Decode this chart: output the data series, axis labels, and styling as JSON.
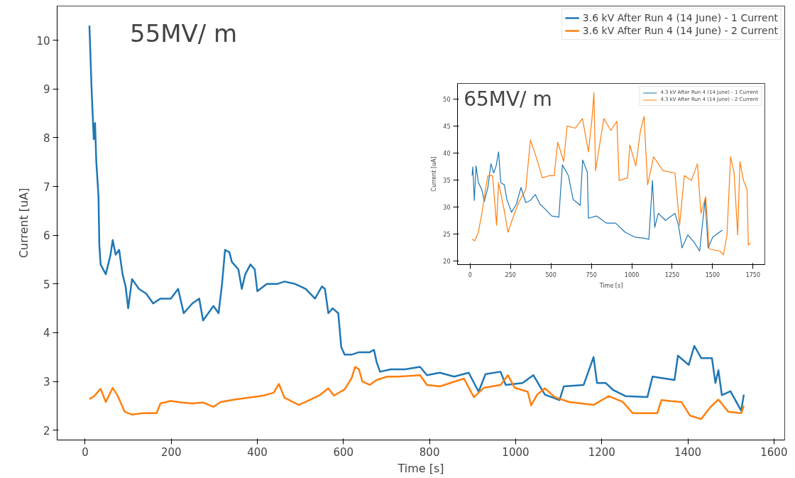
{
  "chart_data": [
    {
      "type": "line",
      "xlabel": "Time [s]",
      "ylabel": "Current [uA]",
      "xlim": [
        -65,
        1625
      ],
      "ylim": [
        1.8,
        10.7
      ],
      "xticks": [
        0,
        200,
        400,
        600,
        800,
        1000,
        1200,
        1400,
        1600
      ],
      "yticks": [
        2,
        3,
        4,
        5,
        6,
        7,
        8,
        9,
        10
      ],
      "legend": "top right",
      "annotations": [
        "55MV/ m"
      ],
      "series": [
        {
          "name": "3.6 kV After Run 4 (14 June) - 1 Current",
          "color": "#1f77b4",
          "x": [
            10,
            15,
            20,
            23,
            26,
            31,
            33,
            36,
            48,
            59,
            64,
            71,
            79,
            87,
            94,
            100,
            109,
            125,
            142,
            158,
            175,
            199,
            216,
            229,
            249,
            265,
            274,
            298,
            310,
            318,
            325,
            335,
            341,
            356,
            364,
            372,
            384,
            394,
            400,
            422,
            446,
            463,
            488,
            512,
            534,
            550,
            557,
            565,
            575,
            588,
            595,
            603,
            619,
            636,
            661,
            671,
            677,
            685,
            710,
            743,
            778,
            794,
            824,
            857,
            891,
            914,
            930,
            965,
            977,
            1016,
            1041,
            1068,
            1102,
            1112,
            1158,
            1181,
            1189,
            1209,
            1226,
            1255,
            1306,
            1318,
            1369,
            1377,
            1402,
            1415,
            1431,
            1456,
            1464,
            1471,
            1479,
            1499,
            1524,
            1530
          ],
          "values": [
            10.3,
            9.0,
            7.97,
            8.3,
            7.5,
            6.8,
            5.8,
            5.4,
            5.2,
            5.6,
            5.9,
            5.6,
            5.7,
            5.2,
            4.95,
            4.5,
            5.1,
            4.9,
            4.8,
            4.6,
            4.7,
            4.7,
            4.9,
            4.4,
            4.6,
            4.7,
            4.25,
            4.55,
            4.4,
            5.0,
            5.7,
            5.65,
            5.45,
            5.3,
            4.9,
            5.2,
            5.4,
            5.3,
            4.85,
            5.0,
            5.0,
            5.05,
            5.0,
            4.9,
            4.7,
            4.95,
            4.9,
            4.4,
            4.5,
            4.4,
            3.7,
            3.55,
            3.55,
            3.6,
            3.6,
            3.65,
            3.4,
            3.2,
            3.25,
            3.25,
            3.3,
            3.13,
            3.18,
            3.1,
            3.18,
            2.79,
            3.15,
            3.2,
            2.93,
            2.97,
            3.13,
            2.73,
            2.62,
            2.9,
            2.93,
            3.5,
            2.97,
            2.97,
            2.83,
            2.7,
            2.68,
            3.1,
            3.03,
            3.53,
            3.34,
            3.73,
            3.48,
            3.48,
            2.97,
            3.23,
            2.72,
            2.8,
            2.4,
            2.73
          ]
        },
        {
          "name": "3.6 kV After Run 4 (14 June) - 2 Current",
          "color": "#ff7f0e",
          "x": [
            10,
            21,
            36,
            48,
            64,
            76,
            92,
            109,
            133,
            166,
            175,
            199,
            224,
            249,
            274,
            298,
            315,
            348,
            381,
            414,
            438,
            450,
            463,
            496,
            512,
            545,
            565,
            578,
            603,
            619,
            627,
            636,
            644,
            661,
            677,
            702,
            727,
            778,
            794,
            824,
            880,
            903,
            926,
            965,
            982,
            998,
            1028,
            1036,
            1050,
            1068,
            1091,
            1124,
            1181,
            1216,
            1249,
            1272,
            1329,
            1339,
            1357,
            1385,
            1405,
            1431,
            1453,
            1471,
            1494,
            1524,
            1530
          ],
          "values": [
            2.64,
            2.7,
            2.85,
            2.58,
            2.87,
            2.7,
            2.38,
            2.32,
            2.35,
            2.35,
            2.55,
            2.6,
            2.57,
            2.55,
            2.57,
            2.48,
            2.58,
            2.63,
            2.67,
            2.71,
            2.77,
            2.95,
            2.67,
            2.52,
            2.58,
            2.72,
            2.86,
            2.71,
            2.84,
            3.07,
            3.3,
            3.25,
            3.0,
            2.93,
            3.03,
            3.1,
            3.1,
            3.13,
            2.93,
            2.9,
            3.06,
            2.68,
            2.87,
            2.93,
            3.13,
            2.87,
            2.79,
            2.51,
            2.73,
            2.86,
            2.68,
            2.58,
            2.52,
            2.7,
            2.58,
            2.35,
            2.35,
            2.62,
            2.6,
            2.58,
            2.3,
            2.23,
            2.48,
            2.63,
            2.38,
            2.35,
            2.5
          ]
        }
      ]
    },
    {
      "type": "line",
      "xlabel": "Time [s]",
      "ylabel": "Current [uA]",
      "xlim": [
        -78,
        1823
      ],
      "ylim": [
        19.3,
        52.9
      ],
      "xticks": [
        0,
        250,
        500,
        750,
        1000,
        1250,
        1500,
        1750
      ],
      "yticks": [
        20,
        25,
        30,
        35,
        40,
        45,
        50
      ],
      "legend": "top right",
      "annotations": [
        "65MV/ m"
      ],
      "series": [
        {
          "name": "4.3 kV After Run 4 (14 June) - 1 Current",
          "color": "#1f77b4",
          "x": [
            12,
            17,
            26,
            37,
            51,
            73,
            88,
            110,
            129,
            146,
            161,
            176,
            190,
            212,
            227,
            256,
            286,
            315,
            344,
            373,
            403,
            432,
            461,
            505,
            549,
            571,
            608,
            637,
            681,
            696,
            725,
            732,
            783,
            842,
            900,
            959,
            1018,
            1076,
            1106,
            1128,
            1142,
            1164,
            1208,
            1267,
            1289,
            1311,
            1347,
            1384,
            1420,
            1435,
            1454,
            1472,
            1501,
            1560
          ],
          "values": [
            35.8,
            37.4,
            31.2,
            37.6,
            34.5,
            33.2,
            31.0,
            33.6,
            38.0,
            36.3,
            37.6,
            40.2,
            34.5,
            34.1,
            31.4,
            29.0,
            30.5,
            33.6,
            30.8,
            31.2,
            32.3,
            30.5,
            29.7,
            28.3,
            28.1,
            37.8,
            35.8,
            31.4,
            30.3,
            38.7,
            36.5,
            27.9,
            28.3,
            27.0,
            27.0,
            25.3,
            24.4,
            24.2,
            24.0,
            34.9,
            26.2,
            28.8,
            27.5,
            28.8,
            26.6,
            22.4,
            24.8,
            23.5,
            21.8,
            26.2,
            31.4,
            22.4,
            24.4,
            25.7
          ]
        },
        {
          "name": "4.3 kV After Run 4 (14 June) - 2 Current",
          "color": "#ff7f0e",
          "x": [
            12,
            29,
            51,
            73,
            95,
            110,
            139,
            164,
            176,
            212,
            234,
            264,
            300,
            344,
            373,
            403,
            447,
            491,
            520,
            542,
            579,
            600,
            651,
            695,
            732,
            754,
            766,
            776,
            827,
            871,
            908,
            922,
            974,
            988,
            1025,
            1054,
            1076,
            1098,
            1135,
            1193,
            1267,
            1296,
            1325,
            1369,
            1406,
            1428,
            1457,
            1479,
            1545,
            1567,
            1589,
            1611,
            1633,
            1655,
            1669,
            1691,
            1713,
            1721,
            1735
          ],
          "values": [
            24.0,
            23.7,
            25.3,
            28.8,
            33.2,
            35.8,
            35.8,
            26.6,
            34.5,
            29.2,
            25.3,
            27.9,
            30.8,
            33.2,
            42.4,
            39.8,
            35.4,
            35.8,
            35.8,
            42.0,
            38.4,
            45.0,
            44.6,
            46.4,
            40.2,
            46.4,
            51.2,
            36.7,
            46.4,
            44.2,
            45.9,
            34.9,
            35.4,
            41.5,
            37.6,
            44.2,
            46.8,
            34.1,
            39.3,
            36.7,
            36.3,
            26.6,
            35.8,
            34.9,
            38.0,
            28.8,
            31.9,
            22.2,
            21.8,
            21.1,
            24.8,
            39.3,
            36.3,
            24.8,
            38.4,
            34.9,
            33.2,
            22.9,
            23.3
          ]
        }
      ]
    }
  ]
}
